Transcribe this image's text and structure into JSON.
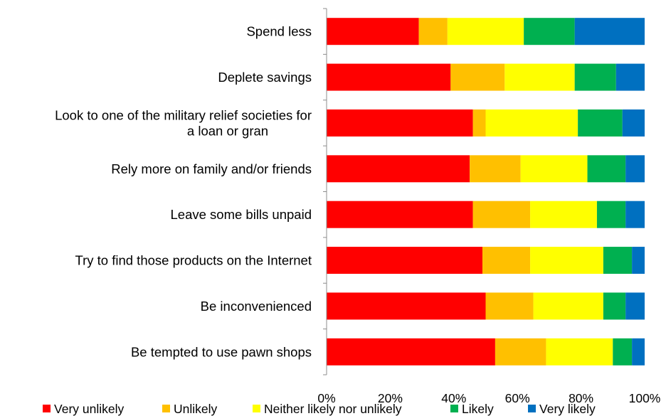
{
  "chart_data": {
    "type": "bar",
    "orientation": "horizontal",
    "stacked": true,
    "percent_stacked": true,
    "categories": [
      "Spend less",
      "Deplete savings",
      "Look to one of the military relief societies for a loan or gran",
      "Rely more on family and/or friends",
      "Leave some bills unpaid",
      "Try to find those products on the Internet",
      "Be inconvenienced",
      "Be tempted to use pawn shops"
    ],
    "category_lines": [
      [
        "Spend less"
      ],
      [
        "Deplete savings"
      ],
      [
        "Look to one of the military relief societies for",
        "a loan or gran"
      ],
      [
        "Rely more on family and/or friends"
      ],
      [
        "Leave some bills unpaid"
      ],
      [
        "Try to find those products on the Internet"
      ],
      [
        "Be inconvenienced"
      ],
      [
        "Be tempted to use pawn shops"
      ]
    ],
    "series": [
      {
        "name": "Very unlikely",
        "color": "#ff0000",
        "values": [
          29,
          39,
          46,
          45,
          46,
          49,
          50,
          53
        ]
      },
      {
        "name": "Unlikely",
        "color": "#ffc000",
        "values": [
          9,
          17,
          4,
          16,
          18,
          15,
          15,
          16
        ]
      },
      {
        "name": "Neither likely nor unlikely",
        "color": "#ffff00",
        "values": [
          24,
          22,
          29,
          21,
          21,
          23,
          22,
          21
        ]
      },
      {
        "name": "Likely",
        "color": "#00b050",
        "values": [
          16,
          13,
          14,
          12,
          9,
          9,
          7,
          6
        ]
      },
      {
        "name": "Very likely",
        "color": "#0070c0",
        "values": [
          22,
          9,
          7,
          6,
          6,
          4,
          6,
          4
        ]
      }
    ],
    "xlim": [
      0,
      100
    ],
    "xticks": [
      "0%",
      "20%",
      "40%",
      "60%",
      "80%",
      "100%"
    ],
    "grid": false,
    "legend": "bottom"
  }
}
